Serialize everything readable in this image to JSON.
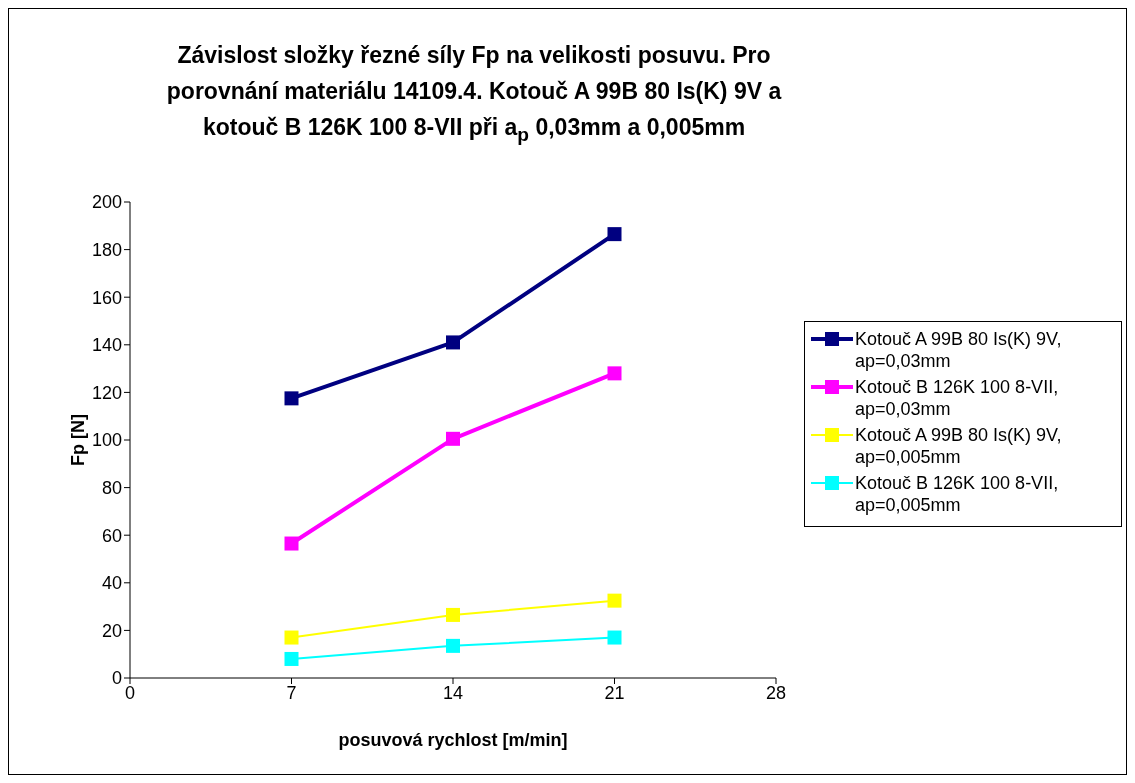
{
  "chart_data": {
    "type": "line",
    "title": "Závislost složky řezné síly Fp na velikosti posuvu. Pro porovnání materiálu 14109.4. Kotouč A 99B 80 Is(K) 9V a kotouč B 126K 100 8-VII při a$_{p}$ 0,03mm a 0,005mm",
    "xlabel": "posuvová rychlost [m/min]",
    "ylabel": "Fp [N]",
    "x": [
      7,
      14,
      21
    ],
    "series": [
      {
        "name": "Kotouč A 99B 80 Is(K) 9V, ap=0,03mm",
        "color": "#000080",
        "values": [
          117.5,
          141,
          186.5
        ]
      },
      {
        "name": "Kotouč B 126K 100 8-VII, ap=0,03mm",
        "color": "#ff00ff",
        "values": [
          56.5,
          100.5,
          128
        ]
      },
      {
        "name": "Kotouč A 99B 80 Is(K) 9V, ap=0,005mm",
        "color": "#ffff00",
        "values": [
          17,
          26.5,
          32.5
        ]
      },
      {
        "name": "Kotouč B 126K 100 8-VII, ap=0,005mm",
        "color": "#00ffff",
        "values": [
          8,
          13.5,
          17
        ]
      }
    ],
    "xlim": [
      0,
      28
    ],
    "xticks": [
      0,
      7,
      14,
      21,
      28
    ],
    "ylim": [
      0,
      200
    ],
    "yticks": [
      0,
      20,
      40,
      60,
      80,
      100,
      120,
      140,
      160,
      180,
      200
    ],
    "grid": false,
    "legend": "right",
    "marker": "square",
    "line_style": "solid"
  }
}
